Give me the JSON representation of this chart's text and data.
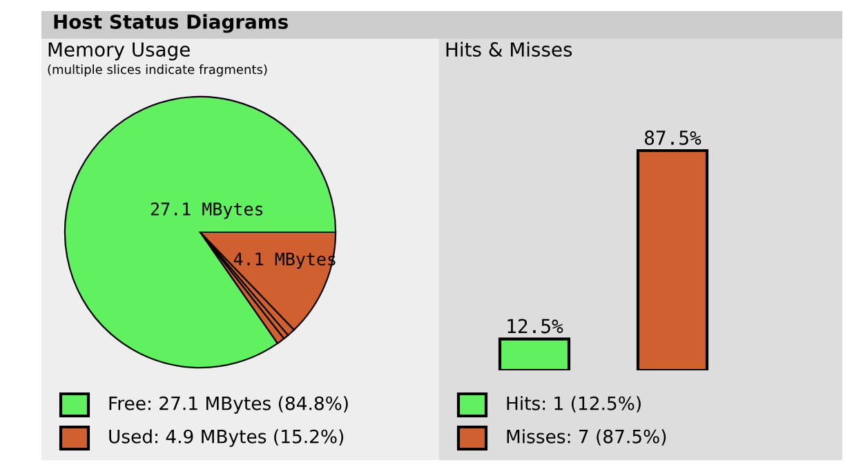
{
  "chart_data": [
    {
      "type": "pie",
      "title": "Memory Usage",
      "subtitle": "(multiple slices indicate fragments)",
      "annotations": [
        "Host Status Diagrams"
      ],
      "categories": [
        "Free: 27.1 MBytes (84.8%)",
        null,
        null,
        null,
        "Used: 4.9 MBytes (15.2%)"
      ],
      "values": [
        27.1,
        0.3,
        0.2,
        0.3,
        4.1
      ],
      "colors": [
        "#60f060",
        "#d06030",
        "#d06030",
        "#d06030",
        "#d06030"
      ],
      "value_labels": [
        "27.1 MBytes",
        null,
        null,
        null,
        "4.1 MBytes"
      ],
      "legend": "bottom"
    },
    {
      "type": "bar",
      "title": "Hits & Misses",
      "categories": [
        null,
        null
      ],
      "stacked": true,
      "series": [
        {
          "name": "Hits: 1 (12.5%)",
          "color": "#60f060",
          "values": [
            12.5,
            null
          ],
          "value_labels": [
            "12.5%",
            null
          ]
        },
        {
          "name": "Misses: 7 (87.5%)",
          "color": "#d06030",
          "values": [
            null,
            87.5
          ],
          "value_labels": [
            null,
            "87.5%"
          ]
        }
      ],
      "legend": "bottom"
    }
  ]
}
